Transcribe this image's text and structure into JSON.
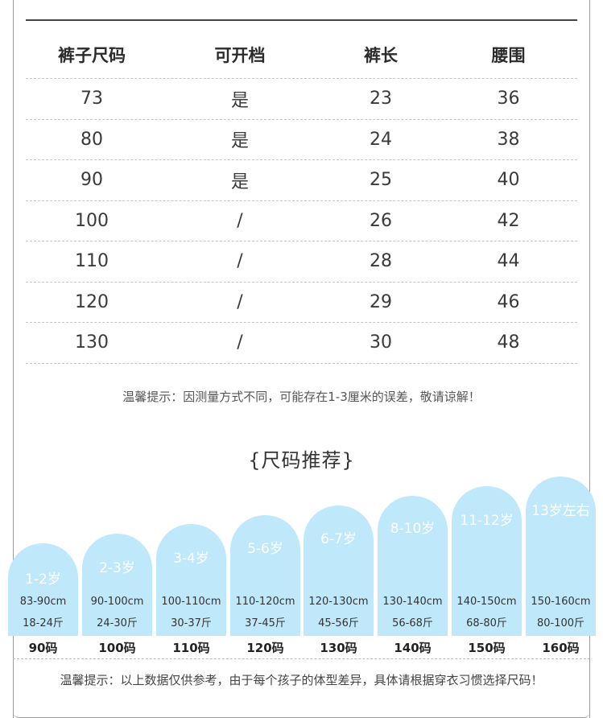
{
  "table": {
    "headers": [
      "裤子尺码",
      "可开档",
      "裤长",
      "腰围"
    ],
    "rows": [
      [
        "73",
        "是",
        "23",
        "36"
      ],
      [
        "80",
        "是",
        "24",
        "38"
      ],
      [
        "90",
        "是",
        "25",
        "40"
      ],
      [
        "100",
        "/",
        "26",
        "42"
      ],
      [
        "110",
        "/",
        "28",
        "44"
      ],
      [
        "120",
        "/",
        "29",
        "46"
      ],
      [
        "130",
        "/",
        "30",
        "48"
      ]
    ]
  },
  "note_measure": "温馨提示：因测量方式不同，可能存在1-3厘米的误差，敬请谅解！",
  "recommend_title": "{尺码推荐}",
  "recommend": [
    {
      "age": "1-2岁",
      "height": "83-90cm",
      "weight": "18-24斤",
      "size": "90码"
    },
    {
      "age": "2-3岁",
      "height": "90-100cm",
      "weight": "24-30斤",
      "size": "100码"
    },
    {
      "age": "3-4岁",
      "height": "100-110cm",
      "weight": "30-37斤",
      "size": "110码"
    },
    {
      "age": "5-6岁",
      "height": "110-120cm",
      "weight": "37-45斤",
      "size": "120码"
    },
    {
      "age": "6-7岁",
      "height": "120-130cm",
      "weight": "45-56斤",
      "size": "130码"
    },
    {
      "age": "8-10岁",
      "height": "130-140cm",
      "weight": "56-68斤",
      "size": "140码"
    },
    {
      "age": "11-12岁",
      "height": "140-150cm",
      "weight": "68-80斤",
      "size": "150码"
    },
    {
      "age": "13岁左右",
      "height": "150-160cm",
      "weight": "80-100斤",
      "size": "160码"
    }
  ],
  "note_reference": "温馨提示：以上数据仅供参考，由于每个孩子的体型差异，具体请根据穿衣习惯选择尺码！",
  "colors": {
    "card": "#c0e8fb",
    "text": "#333333"
  }
}
